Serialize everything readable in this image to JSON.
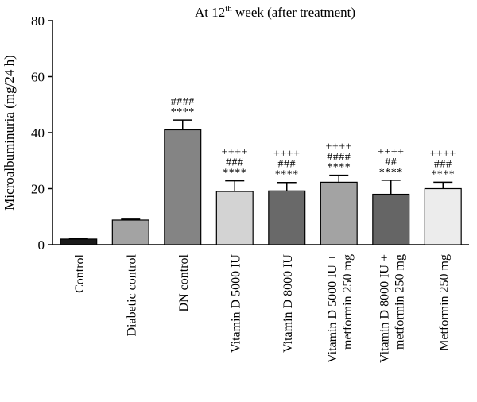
{
  "chart_data": {
    "type": "bar",
    "title": {
      "prefix": "At 12",
      "superscript": "th",
      "suffix": " week (after treatment)"
    },
    "xlabel": "",
    "ylabel": "Microalbuminuria (mg/24 h)",
    "ylim": [
      0,
      80
    ],
    "yticks": [
      0,
      20,
      40,
      60,
      80
    ],
    "grid": false,
    "categories": [
      [
        "Control"
      ],
      [
        "Diabetic control"
      ],
      [
        "DN control"
      ],
      [
        "Vitamin D 5000 IU"
      ],
      [
        "Vitamin D 8000 IU"
      ],
      [
        "Vitamin D 5000 IU +",
        "metformin 250 mg"
      ],
      [
        "Vitamin D 8000 IU +",
        "metformin 250 mg"
      ],
      [
        "Metformin 250 mg"
      ]
    ],
    "values": [
      2.0,
      8.8,
      41.0,
      19.0,
      19.2,
      22.3,
      18.0,
      20.0
    ],
    "errors": [
      0.3,
      0.3,
      3.5,
      3.8,
      3.0,
      2.5,
      5.0,
      2.3
    ],
    "colors": [
      "#1a1a1a",
      "#a3a3a3",
      "#848484",
      "#d3d3d3",
      "#696969",
      "#a3a3a3",
      "#656565",
      "#ececec"
    ],
    "annotations": [
      [],
      [],
      [
        "####",
        "****"
      ],
      [
        "++++",
        "###",
        "****"
      ],
      [
        "++++",
        "###",
        "****"
      ],
      [
        "++++",
        "####",
        "****"
      ],
      [
        "++++",
        "##",
        "****"
      ],
      [
        "++++",
        "###",
        "****"
      ]
    ]
  }
}
